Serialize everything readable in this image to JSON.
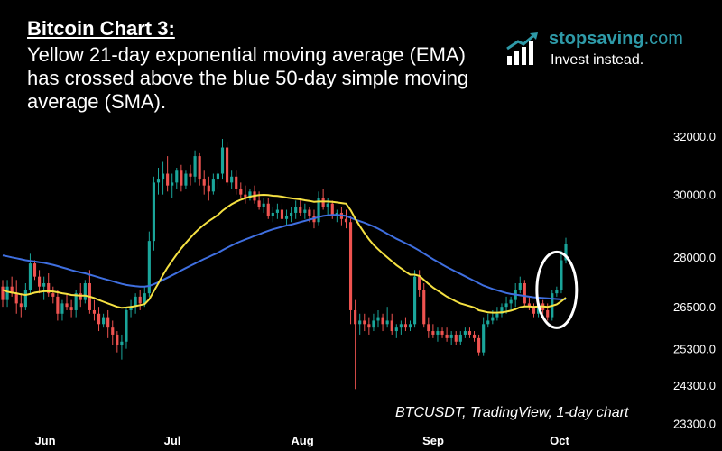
{
  "headline": {
    "title": "Bitcoin Chart 3:",
    "description": "Yellow 21-day exponential moving average (EMA) has crossed above the blue 50-day simple moving average (SMA)."
  },
  "brand": {
    "name": "stopsaving",
    "domain": ".com",
    "tagline": "Invest instead.",
    "icon": "bar-chart-arrow-icon",
    "color": "#2e9aa8"
  },
  "source_note": "BTCUSDT, TradingView, 1-day chart",
  "chart_data": {
    "type": "candlestick",
    "symbol": "BTCUSDT",
    "x_ticks": [
      "Jun",
      "Jul",
      "Aug",
      "Sep",
      "Oct"
    ],
    "y_ticks": [
      "32000.0",
      "30000.0",
      "28000.0",
      "26500.0",
      "25300.0",
      "24300.0",
      "23300.0"
    ],
    "y_tick_values": [
      32000,
      30000,
      28000,
      26500,
      25300,
      24300,
      23300
    ],
    "y_scale": "log",
    "ylim": [
      23100,
      33000
    ],
    "grid": false,
    "colors": {
      "up": "#1aa59a",
      "down": "#ef5350",
      "ema": "#f5e142",
      "sma": "#3f6fe0",
      "highlight": "#ffffff"
    },
    "candles": [
      [
        27100,
        27300,
        26500,
        26700
      ],
      [
        26700,
        27300,
        26500,
        27100
      ],
      [
        27100,
        27400,
        26800,
        26900
      ],
      [
        26900,
        27300,
        26300,
        26600
      ],
      [
        26600,
        26900,
        26200,
        26500
      ],
      [
        26500,
        27200,
        26400,
        27000
      ],
      [
        27000,
        28100,
        26900,
        27800
      ],
      [
        27800,
        27900,
        27300,
        27400
      ],
      [
        27400,
        27600,
        26900,
        27100
      ],
      [
        27100,
        27400,
        26700,
        27200
      ],
      [
        27200,
        27500,
        26800,
        26900
      ],
      [
        26900,
        27100,
        26600,
        26800
      ],
      [
        26800,
        27000,
        26100,
        26300
      ],
      [
        26300,
        26700,
        26100,
        26600
      ],
      [
        26600,
        26900,
        26400,
        26500
      ],
      [
        26500,
        26700,
        26200,
        26400
      ],
      [
        26400,
        27000,
        26200,
        26900
      ],
      [
        26900,
        27200,
        26500,
        26700
      ],
      [
        26700,
        27300,
        26600,
        27200
      ],
      [
        27200,
        27600,
        26300,
        26400
      ],
      [
        26400,
        26700,
        26100,
        26300
      ],
      [
        26300,
        26500,
        25800,
        26000
      ],
      [
        26000,
        26300,
        25900,
        26200
      ],
      [
        26200,
        26400,
        25600,
        25900
      ],
      [
        25900,
        26100,
        25400,
        25700
      ],
      [
        25700,
        25800,
        25200,
        25400
      ],
      [
        25400,
        25700,
        25000,
        25500
      ],
      [
        25500,
        26500,
        25300,
        26400
      ],
      [
        26400,
        26700,
        26200,
        26500
      ],
      [
        26500,
        26900,
        26300,
        26800
      ],
      [
        26800,
        27000,
        26400,
        26600
      ],
      [
        26600,
        27100,
        26500,
        26900
      ],
      [
        26900,
        28800,
        26800,
        28500
      ],
      [
        28500,
        30600,
        28200,
        30400
      ],
      [
        30400,
        30900,
        30000,
        30500
      ],
      [
        30500,
        31100,
        30000,
        30700
      ],
      [
        30700,
        31300,
        30100,
        30300
      ],
      [
        30300,
        30700,
        29900,
        30400
      ],
      [
        30400,
        30900,
        30200,
        30800
      ],
      [
        30800,
        31000,
        30100,
        30300
      ],
      [
        30300,
        30800,
        30200,
        30700
      ],
      [
        30700,
        31000,
        30300,
        30600
      ],
      [
        30600,
        31500,
        30400,
        31300
      ],
      [
        31300,
        31400,
        30300,
        30500
      ],
      [
        30500,
        30800,
        30000,
        30300
      ],
      [
        30300,
        30600,
        29800,
        30100
      ],
      [
        30100,
        30700,
        30000,
        30500
      ],
      [
        30500,
        30800,
        30200,
        30700
      ],
      [
        30700,
        31900,
        30500,
        31600
      ],
      [
        31600,
        31800,
        30300,
        30400
      ],
      [
        30400,
        30800,
        30200,
        30600
      ],
      [
        30600,
        30800,
        30000,
        30200
      ],
      [
        30200,
        30400,
        29900,
        30000
      ],
      [
        30000,
        30300,
        29700,
        29900
      ],
      [
        29900,
        30200,
        29800,
        30100
      ],
      [
        30100,
        30300,
        29700,
        29800
      ],
      [
        29800,
        30100,
        29500,
        29600
      ],
      [
        29600,
        29900,
        29400,
        29700
      ],
      [
        29700,
        29900,
        29200,
        29300
      ],
      [
        29300,
        29600,
        29100,
        29400
      ],
      [
        29400,
        29700,
        29200,
        29500
      ],
      [
        29500,
        29700,
        29100,
        29200
      ],
      [
        29200,
        29500,
        29000,
        29300
      ],
      [
        29300,
        29600,
        29100,
        29400
      ],
      [
        29400,
        29800,
        29200,
        29600
      ],
      [
        29600,
        29900,
        29300,
        29400
      ],
      [
        29400,
        29700,
        29200,
        29500
      ],
      [
        29500,
        29600,
        29100,
        29300
      ],
      [
        29300,
        29500,
        28900,
        29100
      ],
      [
        29100,
        30100,
        29000,
        29900
      ],
      [
        29900,
        30200,
        29500,
        29600
      ],
      [
        29600,
        29900,
        29300,
        29700
      ],
      [
        29700,
        29800,
        29200,
        29300
      ],
      [
        29300,
        29500,
        29100,
        29400
      ],
      [
        29400,
        29600,
        29000,
        29200
      ],
      [
        29200,
        29500,
        28900,
        29100
      ],
      [
        29100,
        29300,
        26000,
        26400
      ],
      [
        26400,
        26700,
        24200,
        26000
      ],
      [
        26000,
        26300,
        25700,
        26100
      ],
      [
        26100,
        26300,
        25800,
        26000
      ],
      [
        26000,
        26200,
        25700,
        25900
      ],
      [
        25900,
        26300,
        25800,
        26100
      ],
      [
        26100,
        26400,
        25900,
        26200
      ],
      [
        26200,
        26300,
        25800,
        26000
      ],
      [
        26000,
        26500,
        25900,
        26100
      ],
      [
        26100,
        26300,
        25700,
        25800
      ],
      [
        25800,
        26000,
        25600,
        25900
      ],
      [
        25900,
        26100,
        25700,
        26000
      ],
      [
        26000,
        26200,
        25800,
        25900
      ],
      [
        25900,
        26100,
        25800,
        26000
      ],
      [
        26000,
        27600,
        25900,
        27400
      ],
      [
        27400,
        27600,
        26800,
        27000
      ],
      [
        27000,
        27200,
        25900,
        26000
      ],
      [
        26000,
        26200,
        25600,
        25800
      ],
      [
        25800,
        26000,
        25600,
        25700
      ],
      [
        25700,
        25900,
        25500,
        25800
      ],
      [
        25800,
        25900,
        25600,
        25700
      ],
      [
        25700,
        25900,
        25500,
        25600
      ],
      [
        25600,
        25800,
        25400,
        25700
      ],
      [
        25700,
        25800,
        25400,
        25500
      ],
      [
        25500,
        25800,
        25400,
        25700
      ],
      [
        25700,
        25900,
        25600,
        25800
      ],
      [
        25800,
        25900,
        25600,
        25700
      ],
      [
        25700,
        25800,
        25500,
        25600
      ],
      [
        25600,
        25700,
        25100,
        25200
      ],
      [
        25200,
        26200,
        25100,
        26000
      ],
      [
        26000,
        26300,
        25900,
        26100
      ],
      [
        26100,
        26400,
        26000,
        26200
      ],
      [
        26200,
        26500,
        26100,
        26300
      ],
      [
        26300,
        26600,
        26200,
        26500
      ],
      [
        26500,
        26800,
        26300,
        26600
      ],
      [
        26600,
        26800,
        26400,
        26700
      ],
      [
        26700,
        27200,
        26500,
        27000
      ],
      [
        27000,
        27400,
        26900,
        27200
      ],
      [
        27200,
        27300,
        26500,
        26600
      ],
      [
        26600,
        26800,
        26400,
        26500
      ],
      [
        26500,
        26600,
        26200,
        26300
      ],
      [
        26300,
        26700,
        26200,
        26600
      ],
      [
        26600,
        26700,
        26300,
        26400
      ],
      [
        26400,
        26600,
        26100,
        26200
      ],
      [
        26200,
        27000,
        26100,
        26900
      ],
      [
        26900,
        27100,
        26800,
        27000
      ],
      [
        27000,
        28200,
        26900,
        27900
      ],
      [
        27900,
        28600,
        27800,
        28400
      ]
    ],
    "ema21": [
      27000,
      26950,
      26920,
      26900,
      26870,
      26850,
      26880,
      26920,
      26940,
      26960,
      26960,
      26955,
      26930,
      26900,
      26880,
      26850,
      26840,
      26830,
      26830,
      26800,
      26760,
      26700,
      26650,
      26600,
      26550,
      26500,
      26470,
      26480,
      26500,
      26520,
      26550,
      26580,
      26720,
      26960,
      27200,
      27450,
      27680,
      27880,
      28080,
      28270,
      28440,
      28600,
      28760,
      28900,
      29020,
      29130,
      29230,
      29330,
      29470,
      29580,
      29680,
      29760,
      29830,
      29880,
      29930,
      29960,
      29980,
      29990,
      29980,
      29960,
      29950,
      29930,
      29900,
      29880,
      29860,
      29840,
      29810,
      29790,
      29760,
      29770,
      29770,
      29770,
      29760,
      29740,
      29720,
      29700,
      29480,
      29210,
      28970,
      28750,
      28550,
      28380,
      28240,
      28110,
      27990,
      27870,
      27750,
      27650,
      27550,
      27460,
      27460,
      27420,
      27300,
      27180,
      27070,
      26980,
      26890,
      26800,
      26730,
      26660,
      26600,
      26560,
      26520,
      26480,
      26400,
      26370,
      26340,
      26330,
      26330,
      26340,
      26360,
      26390,
      26430,
      26490,
      26510,
      26510,
      26500,
      26510,
      26510,
      26500,
      26530,
      26570,
      26660,
      26770
    ],
    "sma50": [
      28050,
      28020,
      27990,
      27960,
      27930,
      27900,
      27880,
      27860,
      27840,
      27820,
      27790,
      27760,
      27720,
      27680,
      27640,
      27600,
      27560,
      27530,
      27500,
      27460,
      27420,
      27380,
      27340,
      27300,
      27260,
      27220,
      27180,
      27150,
      27130,
      27110,
      27100,
      27100,
      27120,
      27170,
      27230,
      27300,
      27370,
      27440,
      27510,
      27590,
      27660,
      27730,
      27800,
      27870,
      27940,
      28000,
      28070,
      28130,
      28210,
      28290,
      28360,
      28430,
      28490,
      28550,
      28600,
      28660,
      28710,
      28770,
      28820,
      28870,
      28910,
      28950,
      28990,
      29020,
      29060,
      29100,
      29140,
      29180,
      29220,
      29260,
      29300,
      29320,
      29330,
      29330,
      29320,
      29300,
      29240,
      29180,
      29130,
      29080,
      29020,
      28960,
      28890,
      28810,
      28730,
      28650,
      28570,
      28500,
      28430,
      28360,
      28280,
      28200,
      28110,
      28020,
      27930,
      27850,
      27770,
      27690,
      27620,
      27550,
      27480,
      27410,
      27340,
      27270,
      27200,
      27130,
      27080,
      27030,
      26990,
      26950,
      26910,
      26880,
      26860,
      26840,
      26820,
      26800,
      26780,
      26770,
      26760,
      26750,
      26740,
      26730,
      26720,
      26720
    ]
  }
}
